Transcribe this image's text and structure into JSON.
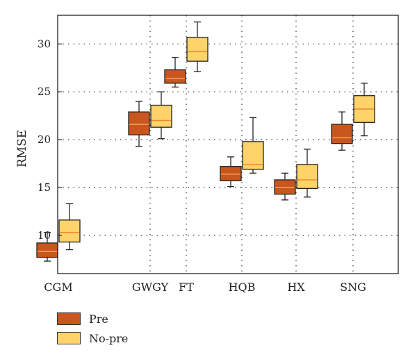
{
  "chart_data": {
    "type": "box",
    "title": "",
    "xlabel": "",
    "ylabel": "RMSE",
    "ylim": [
      6,
      33
    ],
    "yticks": [
      10,
      15,
      20,
      25,
      30
    ],
    "categories": [
      "CGM",
      "GWGY",
      "FT",
      "HQB",
      "HX",
      "SNG"
    ],
    "grid": true,
    "legend_position": "bottom-left",
    "series": [
      {
        "name": "Pre",
        "color": "#C8561E",
        "boxes": [
          {
            "whisker_low": 7.3,
            "q1": 7.7,
            "median": 8.3,
            "q3": 9.2,
            "whisker_high": 10.3
          },
          {
            "whisker_low": 19.3,
            "q1": 20.5,
            "median": 21.6,
            "q3": 22.9,
            "whisker_high": 24.0
          },
          {
            "whisker_low": 25.5,
            "q1": 25.9,
            "median": 26.4,
            "q3": 27.3,
            "whisker_high": 28.6
          },
          {
            "whisker_low": 15.1,
            "q1": 15.7,
            "median": 16.4,
            "q3": 17.2,
            "whisker_high": 18.2
          },
          {
            "whisker_low": 13.7,
            "q1": 14.3,
            "median": 15.0,
            "q3": 15.8,
            "whisker_high": 16.5
          },
          {
            "whisker_low": 18.9,
            "q1": 19.6,
            "median": 20.2,
            "q3": 21.6,
            "whisker_high": 22.9
          }
        ]
      },
      {
        "name": "No-pre",
        "color": "#FDD36A",
        "boxes": [
          {
            "whisker_low": 8.5,
            "q1": 9.3,
            "median": 10.3,
            "q3": 11.6,
            "whisker_high": 13.3
          },
          {
            "whisker_low": 20.1,
            "q1": 21.3,
            "median": 22.0,
            "q3": 23.6,
            "whisker_high": 25.0
          },
          {
            "whisker_low": 27.1,
            "q1": 28.2,
            "median": 29.2,
            "q3": 30.7,
            "whisker_high": 32.3
          },
          {
            "whisker_low": 16.5,
            "q1": 16.9,
            "median": 17.4,
            "q3": 19.8,
            "whisker_high": 22.3
          },
          {
            "whisker_low": 14.0,
            "q1": 14.9,
            "median": 15.8,
            "q3": 17.4,
            "whisker_high": 19.0
          },
          {
            "whisker_low": 20.4,
            "q1": 21.8,
            "median": 23.2,
            "q3": 24.6,
            "whisker_high": 25.9
          }
        ]
      }
    ]
  }
}
